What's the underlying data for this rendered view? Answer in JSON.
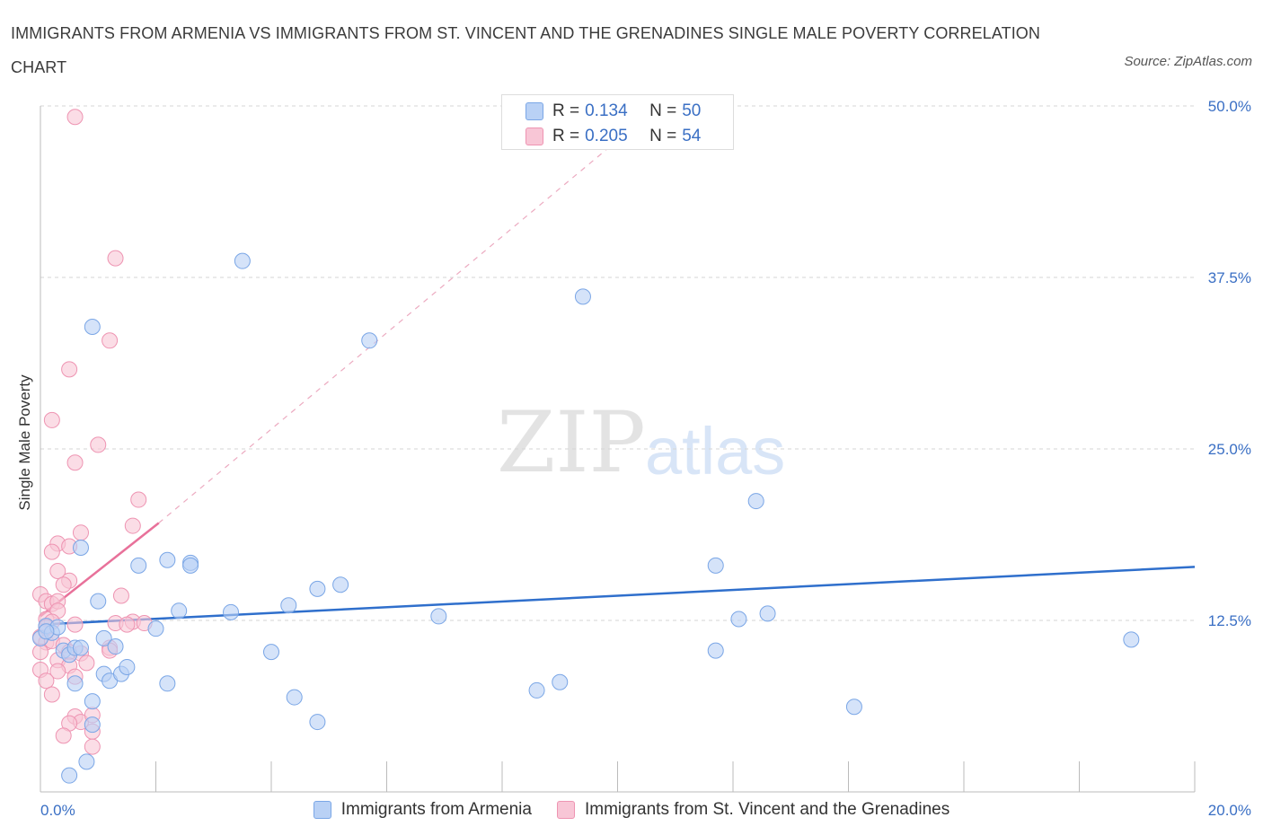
{
  "title": "IMMIGRANTS FROM ARMENIA VS IMMIGRANTS FROM ST. VINCENT AND THE GRENADINES SINGLE MALE POVERTY CORRELATION CHART",
  "source": "Source: ZipAtlas.com",
  "watermark": {
    "zip": "ZIP",
    "atlas": "atlas"
  },
  "legend_stats": [
    {
      "r_label": "R =",
      "r_value": "0.134",
      "n_label": "N =",
      "n_value": "50"
    },
    {
      "r_label": "R =",
      "r_value": "0.205",
      "n_label": "N =",
      "n_value": "54"
    }
  ],
  "colors": {
    "armenia_fill": "#b9d1f5",
    "armenia_stroke": "#7aa6e6",
    "armenia_line": "#2f6fcc",
    "svg_fill": "#f8c6d6",
    "svg_stroke": "#ee94b2",
    "svg_line": "#e8719a",
    "tick": "#3a6fc4",
    "grid": "#d6d6d6"
  },
  "chart_data": {
    "type": "scatter",
    "title": "IMMIGRANTS FROM ARMENIA VS IMMIGRANTS FROM ST. VINCENT AND THE GRENADINES SINGLE MALE POVERTY CORRELATION CHART",
    "xlabel": "",
    "ylabel": "Single Male Poverty",
    "xlim": [
      0,
      20
    ],
    "ylim": [
      0,
      50
    ],
    "x_tick_labels": [
      "0.0%",
      "20.0%"
    ],
    "y_ticks": [
      12.5,
      25,
      37.5,
      50
    ],
    "y_tick_labels": [
      "12.5%",
      "25.0%",
      "37.5%",
      "50.0%"
    ],
    "grid": true,
    "legend_position": "bottom",
    "series": [
      {
        "name": "Immigrants from Armenia",
        "r": 0.134,
        "n": 50,
        "trend": {
          "x": [
            0,
            20
          ],
          "y": [
            12.2,
            16.4
          ],
          "style": "solid"
        },
        "points": [
          [
            0.0,
            11.2
          ],
          [
            0.1,
            12.1
          ],
          [
            0.2,
            11.6
          ],
          [
            0.3,
            12.0
          ],
          [
            0.4,
            10.3
          ],
          [
            0.5,
            10.0
          ],
          [
            0.6,
            10.5
          ],
          [
            0.7,
            10.5
          ],
          [
            0.5,
            1.2
          ],
          [
            0.6,
            7.9
          ],
          [
            0.7,
            17.8
          ],
          [
            0.9,
            33.9
          ],
          [
            0.9,
            6.6
          ],
          [
            0.9,
            4.9
          ],
          [
            0.8,
            2.2
          ],
          [
            1.0,
            13.9
          ],
          [
            1.1,
            8.6
          ],
          [
            1.1,
            11.2
          ],
          [
            1.2,
            8.1
          ],
          [
            1.3,
            10.6
          ],
          [
            1.4,
            8.6
          ],
          [
            1.5,
            9.1
          ],
          [
            1.7,
            16.5
          ],
          [
            2.0,
            11.9
          ],
          [
            2.2,
            16.9
          ],
          [
            2.2,
            7.9
          ],
          [
            2.4,
            13.2
          ],
          [
            2.6,
            16.7
          ],
          [
            2.6,
            16.5
          ],
          [
            3.3,
            13.1
          ],
          [
            3.5,
            38.7
          ],
          [
            4.0,
            10.2
          ],
          [
            4.3,
            13.6
          ],
          [
            4.4,
            6.9
          ],
          [
            4.8,
            5.1
          ],
          [
            4.8,
            14.8
          ],
          [
            5.2,
            15.1
          ],
          [
            5.7,
            32.9
          ],
          [
            6.9,
            12.8
          ],
          [
            8.6,
            7.4
          ],
          [
            9.0,
            8.0
          ],
          [
            9.4,
            36.1
          ],
          [
            11.7,
            16.5
          ],
          [
            11.7,
            10.3
          ],
          [
            12.1,
            12.6
          ],
          [
            12.4,
            21.2
          ],
          [
            12.6,
            13.0
          ],
          [
            14.1,
            6.2
          ],
          [
            18.9,
            11.1
          ],
          [
            0.1,
            11.7
          ]
        ]
      },
      {
        "name": "Immigrants from St. Vincent and the Grenadines",
        "r": 0.205,
        "n": 54,
        "trend": {
          "x": [
            0,
            2.05
          ],
          "y": [
            12.8,
            19.6
          ],
          "style": "solid",
          "extension": {
            "x": [
              2.05,
              10
            ],
            "y": [
              19.6,
              47.5
            ],
            "style": "dashed"
          }
        },
        "points": [
          [
            0.6,
            49.2
          ],
          [
            1.3,
            38.9
          ],
          [
            1.2,
            32.9
          ],
          [
            0.5,
            30.8
          ],
          [
            0.2,
            27.1
          ],
          [
            1.0,
            25.3
          ],
          [
            0.6,
            24.0
          ],
          [
            1.7,
            21.3
          ],
          [
            1.6,
            19.4
          ],
          [
            0.7,
            18.9
          ],
          [
            0.3,
            18.1
          ],
          [
            0.5,
            17.9
          ],
          [
            0.2,
            17.5
          ],
          [
            0.3,
            16.1
          ],
          [
            0.5,
            15.4
          ],
          [
            0.4,
            15.1
          ],
          [
            0.0,
            14.4
          ],
          [
            0.1,
            13.9
          ],
          [
            0.2,
            13.7
          ],
          [
            0.3,
            13.9
          ],
          [
            1.4,
            14.3
          ],
          [
            0.3,
            13.2
          ],
          [
            0.1,
            12.6
          ],
          [
            0.2,
            12.4
          ],
          [
            0.6,
            12.2
          ],
          [
            1.3,
            12.3
          ],
          [
            1.6,
            12.4
          ],
          [
            1.8,
            12.3
          ],
          [
            1.5,
            12.2
          ],
          [
            0.0,
            11.3
          ],
          [
            0.1,
            10.9
          ],
          [
            0.2,
            11.0
          ],
          [
            0.4,
            10.7
          ],
          [
            0.5,
            10.2
          ],
          [
            0.7,
            10.1
          ],
          [
            0.3,
            9.6
          ],
          [
            0.5,
            9.2
          ],
          [
            0.8,
            9.4
          ],
          [
            0.0,
            8.9
          ],
          [
            0.3,
            8.8
          ],
          [
            0.6,
            8.4
          ],
          [
            0.1,
            8.1
          ],
          [
            0.2,
            7.1
          ],
          [
            0.6,
            5.5
          ],
          [
            0.7,
            5.1
          ],
          [
            0.5,
            5.0
          ],
          [
            0.9,
            4.4
          ],
          [
            0.4,
            4.1
          ],
          [
            0.9,
            3.3
          ],
          [
            1.2,
            10.5
          ],
          [
            0.1,
            12.0
          ],
          [
            0.0,
            10.2
          ],
          [
            0.9,
            5.6
          ],
          [
            1.2,
            10.3
          ]
        ]
      }
    ]
  },
  "axis": {
    "ylabel": "Single Male Poverty",
    "x_min_label": "0.0%",
    "x_max_label": "20.0%"
  },
  "legend_bottom": [
    {
      "label": "Immigrants from Armenia"
    },
    {
      "label": "Immigrants from St. Vincent and the Grenadines"
    }
  ]
}
